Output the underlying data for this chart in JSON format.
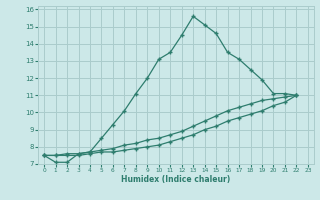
{
  "xlabel": "Humidex (Indice chaleur)",
  "background_color": "#cce8e8",
  "grid_color": "#aacccc",
  "line_color": "#2e7d6e",
  "xlim": [
    -0.5,
    23.5
  ],
  "ylim": [
    7,
    16.2
  ],
  "xticks": [
    0,
    1,
    2,
    3,
    4,
    5,
    6,
    7,
    8,
    9,
    10,
    11,
    12,
    13,
    14,
    15,
    16,
    17,
    18,
    19,
    20,
    21,
    22,
    23
  ],
  "yticks": [
    7,
    8,
    9,
    10,
    11,
    12,
    13,
    14,
    15,
    16
  ],
  "line1_x": [
    0,
    1,
    2,
    3,
    4,
    5,
    6,
    7,
    8,
    9,
    10,
    11,
    12,
    13,
    14,
    15,
    16,
    17,
    18,
    19,
    20,
    21,
    22
  ],
  "line1_y": [
    7.5,
    7.1,
    7.1,
    7.6,
    7.7,
    8.5,
    9.3,
    10.1,
    11.1,
    12.0,
    13.1,
    13.5,
    14.5,
    15.6,
    15.1,
    14.6,
    13.5,
    13.1,
    12.5,
    11.9,
    11.1,
    11.1,
    11.0
  ],
  "line2_x": [
    0,
    22
  ],
  "line2_y": [
    7.5,
    11.0
  ],
  "line3_x": [
    0,
    22
  ],
  "line3_y": [
    7.5,
    11.0
  ],
  "line2_full_x": [
    0,
    1,
    2,
    3,
    4,
    5,
    6,
    7,
    8,
    9,
    10,
    11,
    12,
    13,
    14,
    15,
    16,
    17,
    18,
    19,
    20,
    21,
    22
  ],
  "line2_full_y": [
    7.5,
    7.5,
    7.6,
    7.6,
    7.7,
    7.8,
    7.9,
    8.1,
    8.2,
    8.4,
    8.5,
    8.7,
    8.9,
    9.2,
    9.5,
    9.8,
    10.1,
    10.3,
    10.5,
    10.7,
    10.8,
    10.9,
    11.0
  ],
  "line3_full_x": [
    0,
    1,
    2,
    3,
    4,
    5,
    6,
    7,
    8,
    9,
    10,
    11,
    12,
    13,
    14,
    15,
    16,
    17,
    18,
    19,
    20,
    21,
    22
  ],
  "line3_full_y": [
    7.5,
    7.5,
    7.5,
    7.5,
    7.6,
    7.7,
    7.7,
    7.8,
    7.9,
    8.0,
    8.1,
    8.3,
    8.5,
    8.7,
    9.0,
    9.2,
    9.5,
    9.7,
    9.9,
    10.1,
    10.4,
    10.6,
    11.0
  ]
}
